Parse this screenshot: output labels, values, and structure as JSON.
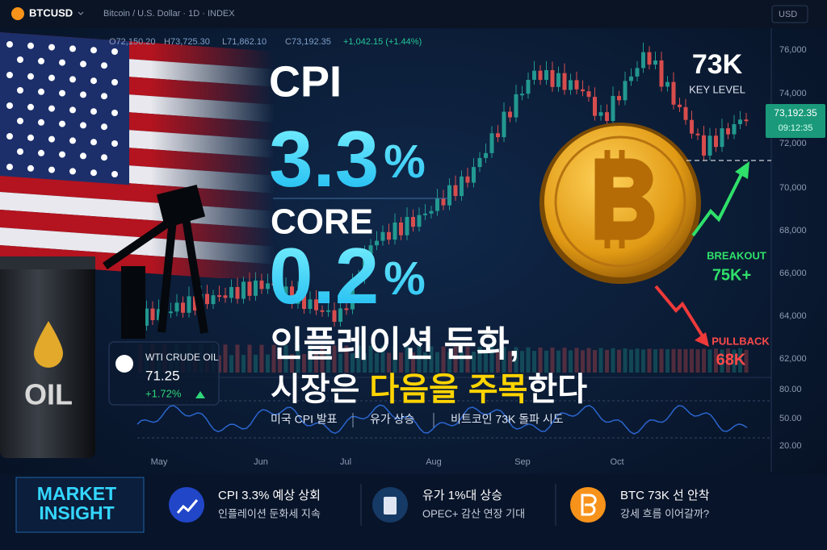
{
  "header": {
    "symbol": "BTCUSD",
    "description": "Bitcoin / U.S. Dollar · 1D · INDEX",
    "currency": "USD"
  },
  "ohlc": [
    {
      "label": "O",
      "value": "72,150.20"
    },
    {
      "label": "H",
      "value": "73,725.30"
    },
    {
      "label": "L",
      "value": "71,862.10"
    },
    {
      "label": "C",
      "value": "73,192.35"
    }
  ],
  "change": "+1,042.15 (+1.44%)",
  "price_axis": [
    "76,000",
    "74,000",
    "72,000",
    "70,000",
    "68,000",
    "66,000",
    "64,000",
    "62,000"
  ],
  "price_tag": {
    "price": "73,192.35",
    "time": "09:12:35"
  },
  "indicator_axis": [
    "80.00",
    "50.00",
    "20.00"
  ],
  "months": [
    "May",
    "Jun",
    "Jul",
    "Aug",
    "Sep",
    "Oct"
  ],
  "headline": {
    "cpi_label": "CPI",
    "cpi_value": "3.3",
    "cpi_unit": "%",
    "core_label": "CORE",
    "core_value": "0.2",
    "core_unit": "%"
  },
  "korean": {
    "line1": "인플레이션 둔화,",
    "line2": [
      "시장은",
      "다음을",
      "주목",
      "한다"
    ]
  },
  "subline": [
    "미국 CPI 발표",
    "유가 상승",
    "비트코인 73K 돌파 시도"
  ],
  "key_level": {
    "value": "73K",
    "label": "KEY LEVEL"
  },
  "breakout": {
    "label": "BREAKOUT",
    "value": "75K+"
  },
  "pullback": {
    "label": "PULLBACK",
    "value": "68K"
  },
  "oil": {
    "barrel": "OIL",
    "name": "WTI CRUDE OIL",
    "price": "71.25",
    "change": "+1.72%"
  },
  "insight": {
    "title": [
      "MARKET",
      "INSIGHT"
    ],
    "items": [
      {
        "title": "CPI 3.3% 예상 상회",
        "sub": "인플레이션 둔화세 지속"
      },
      {
        "title": "유가 1%대 상승",
        "sub": "OPEC+ 감산 연장 기대"
      },
      {
        "title": "BTC 73K 선 안착",
        "sub": "강세 흐름 이어갈까?"
      }
    ]
  }
}
